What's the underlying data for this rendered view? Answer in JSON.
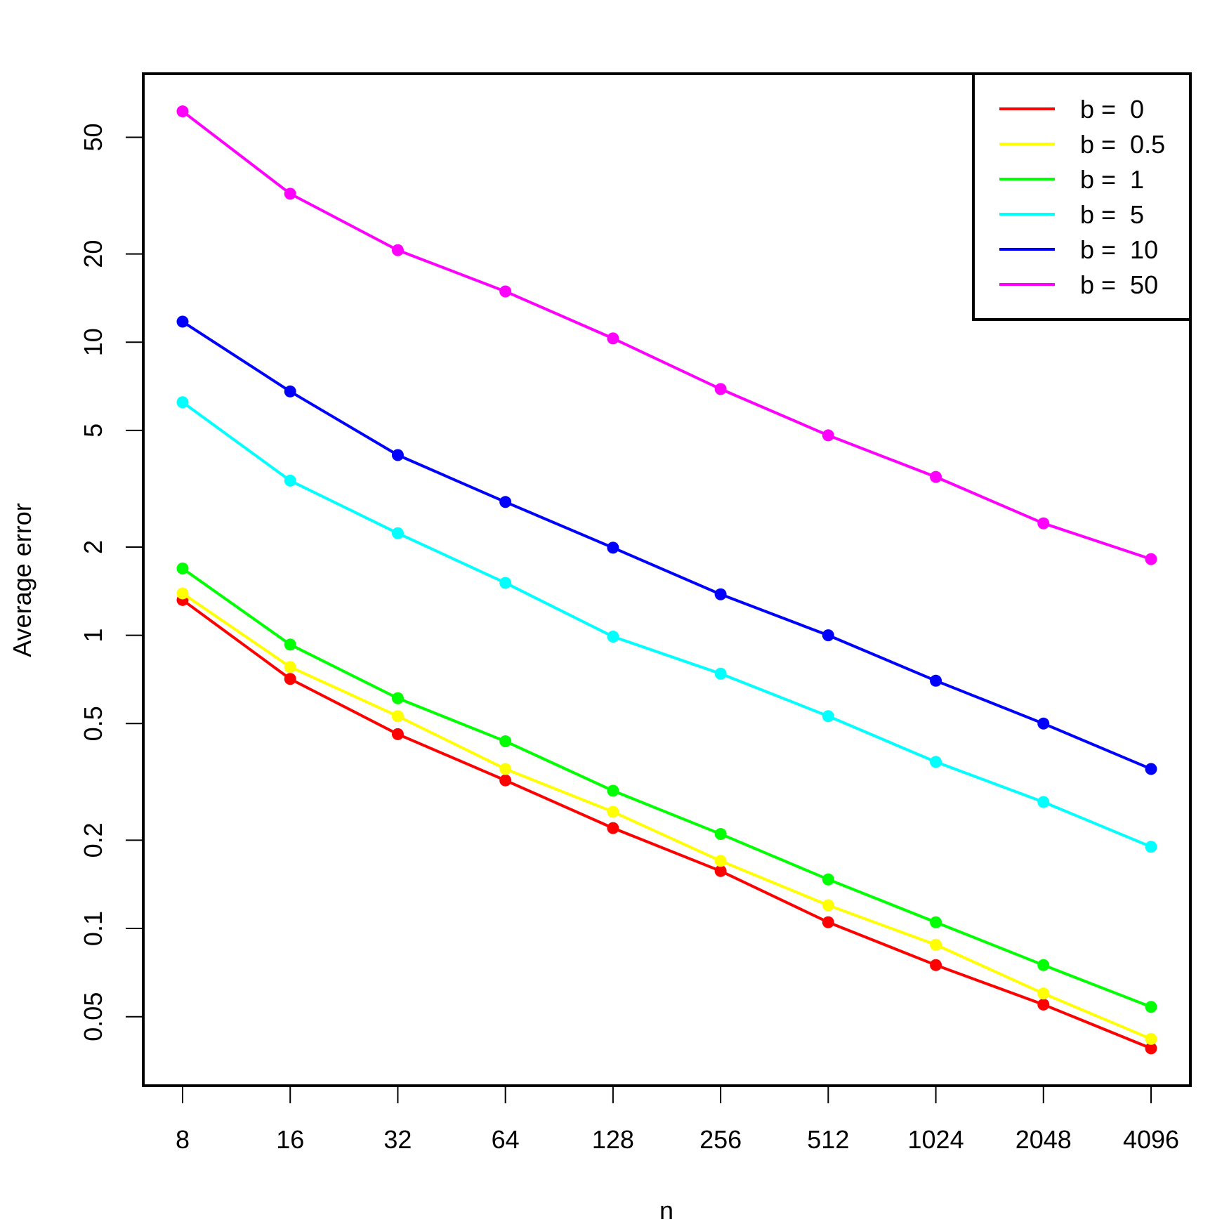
{
  "chart_data": {
    "type": "line",
    "title": "",
    "xlabel": "n",
    "ylabel": "Average error",
    "x": [
      8,
      16,
      32,
      64,
      128,
      256,
      512,
      1024,
      2048,
      4096
    ],
    "x_tick_labels": [
      "8",
      "16",
      "32",
      "64",
      "128",
      "256",
      "512",
      "1024",
      "2048",
      "4096"
    ],
    "x_scale": "log2",
    "y_scale": "log10",
    "y_ticks": [
      0.05,
      0.1,
      0.2,
      0.5,
      1,
      2,
      5,
      10,
      20,
      50
    ],
    "y_tick_labels": [
      "0.05",
      "0.1",
      "0.2",
      "0.5",
      "1",
      "2",
      "5",
      "10",
      "20",
      "50"
    ],
    "grid": false,
    "legend_position": "top-right",
    "series": [
      {
        "name": "b =  0",
        "color": "#ff0000",
        "values": [
          1.32,
          0.71,
          0.46,
          0.32,
          0.22,
          0.157,
          0.105,
          0.075,
          0.055,
          0.039
        ]
      },
      {
        "name": "b =  0.5",
        "color": "#ffff00",
        "values": [
          1.39,
          0.78,
          0.53,
          0.35,
          0.25,
          0.17,
          0.12,
          0.088,
          0.06,
          0.042
        ]
      },
      {
        "name": "b =  1",
        "color": "#00ff00",
        "values": [
          1.69,
          0.93,
          0.61,
          0.435,
          0.295,
          0.21,
          0.147,
          0.105,
          0.075,
          0.054
        ]
      },
      {
        "name": "b =  5",
        "color": "#00ffff",
        "values": [
          6.24,
          3.37,
          2.23,
          1.51,
          0.99,
          0.74,
          0.53,
          0.37,
          0.27,
          0.19
        ]
      },
      {
        "name": "b =  10",
        "color": "#0000ff",
        "values": [
          11.75,
          6.79,
          4.12,
          2.85,
          1.99,
          1.38,
          1.0,
          0.7,
          0.5,
          0.35
        ]
      },
      {
        "name": "b =  50",
        "color": "#ff00ff",
        "values": [
          61.3,
          32.1,
          20.6,
          14.9,
          10.3,
          6.92,
          4.81,
          3.47,
          2.41,
          1.82
        ]
      }
    ]
  }
}
